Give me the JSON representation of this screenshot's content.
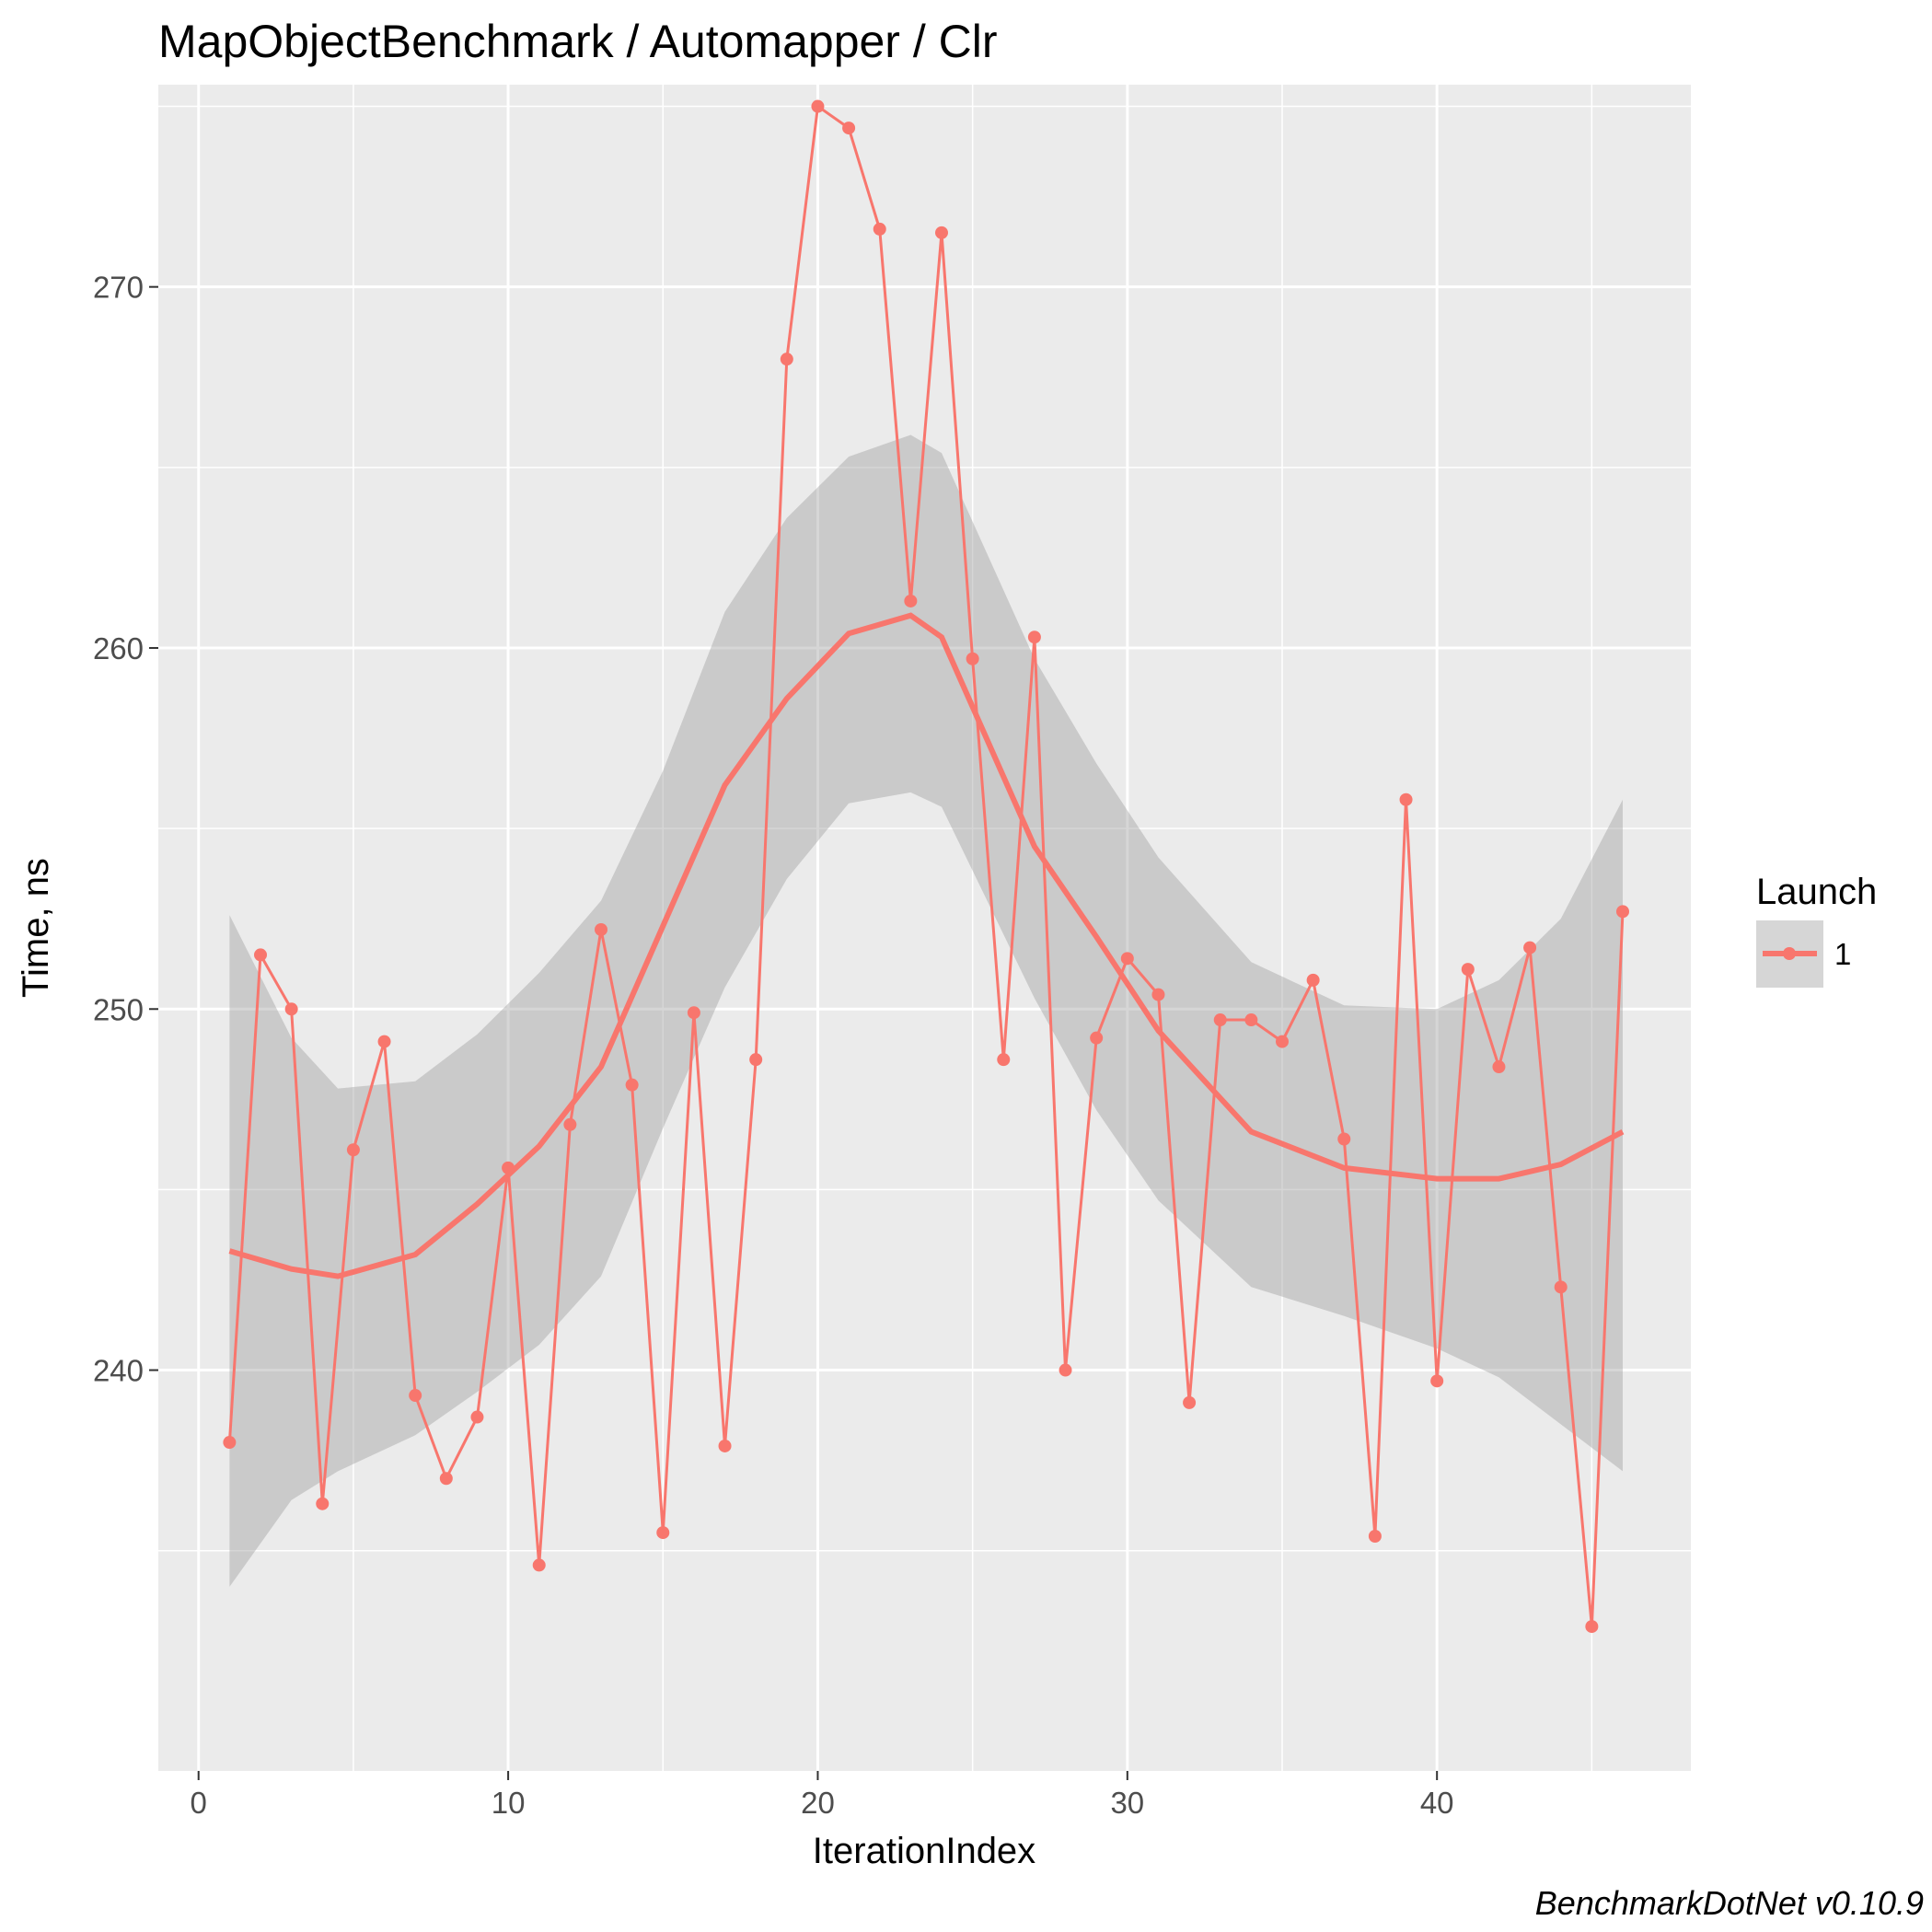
{
  "chart_data": {
    "type": "line",
    "title": "MapObjectBenchmark / Automapper / Clr",
    "xlabel": "IterationIndex",
    "ylabel": "Time, ns",
    "xlim": [
      -1.3,
      48.2
    ],
    "ylim": [
      228.9,
      275.6
    ],
    "x_ticks": [
      0,
      10,
      20,
      30,
      40
    ],
    "y_ticks": [
      240,
      250,
      260,
      270
    ],
    "grid": true,
    "legend": {
      "title": "Launch",
      "position": "right",
      "entries": [
        "1"
      ]
    },
    "caption": "BenchmarkDotNet v0.10.9",
    "colors": {
      "series": "#F8766D",
      "ribbon": "#999999",
      "panel": "#EBEBEB",
      "grid": "#FFFFFF"
    },
    "series": [
      {
        "name": "1",
        "x": [
          1,
          2,
          3,
          4,
          5,
          6,
          7,
          8,
          9,
          10,
          11,
          12,
          13,
          14,
          15,
          16,
          17,
          18,
          19,
          20,
          21,
          22,
          23,
          24,
          25,
          26,
          27,
          28,
          29,
          30,
          31,
          32,
          33,
          34,
          35,
          36,
          37,
          38,
          39,
          40,
          41,
          42,
          43,
          44,
          45,
          46
        ],
        "values": [
          238.0,
          251.5,
          250.0,
          236.3,
          246.1,
          249.1,
          239.3,
          237.0,
          238.7,
          245.6,
          234.6,
          246.8,
          252.2,
          247.9,
          235.5,
          249.9,
          237.9,
          248.6,
          268.0,
          275.0,
          274.4,
          271.6,
          261.3,
          271.5,
          259.7,
          248.6,
          260.3,
          240.0,
          249.2,
          251.4,
          250.4,
          239.1,
          249.7,
          249.7,
          249.1,
          250.8,
          246.4,
          235.4,
          255.8,
          239.7,
          251.1,
          248.4,
          251.7,
          242.3,
          232.9,
          252.7
        ]
      }
    ],
    "smooth": {
      "x": [
        1,
        3,
        4.5,
        7,
        9,
        11,
        13,
        15,
        17,
        19,
        21,
        23,
        24,
        27,
        29,
        31,
        34,
        37,
        40,
        42,
        44,
        46
      ],
      "y": [
        243.3,
        242.8,
        242.6,
        243.2,
        244.6,
        246.2,
        248.4,
        252.3,
        256.2,
        258.6,
        260.4,
        260.9,
        260.3,
        254.5,
        252.0,
        249.4,
        246.6,
        245.6,
        245.3,
        245.3,
        245.7,
        246.6
      ],
      "lower": [
        234.0,
        236.4,
        237.2,
        238.2,
        239.4,
        240.7,
        242.6,
        246.7,
        250.6,
        253.6,
        255.7,
        256.0,
        255.6,
        250.3,
        247.2,
        244.7,
        242.3,
        241.5,
        240.6,
        239.8,
        238.5,
        237.2
      ],
      "upper": [
        252.6,
        249.2,
        247.8,
        248.0,
        249.3,
        251.0,
        253.0,
        256.6,
        261.0,
        263.6,
        265.3,
        265.9,
        265.4,
        259.7,
        256.8,
        254.2,
        251.3,
        250.1,
        250.0,
        250.8,
        252.5,
        255.8
      ]
    }
  }
}
